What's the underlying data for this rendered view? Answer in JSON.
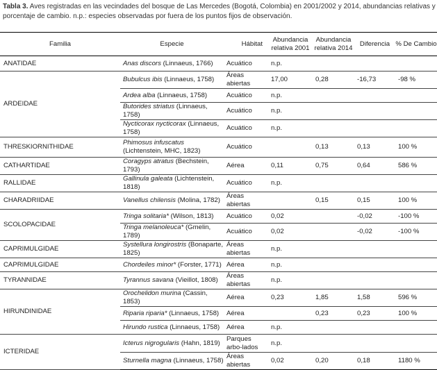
{
  "caption": {
    "label": "Tabla 3.",
    "text": "Aves registradas en las vecindades del bosque de Las Mercedes (Bogotá, Colombia) en 2001/2002 y 2014, abundancias relativas y porcentaje de cambio. n.p.: especies observadas por fuera de los puntos fijos de observación."
  },
  "headers": [
    "Familia",
    "Especie",
    "Hábitat",
    "Abundancia relativa 2001",
    "Abundancia relativa 2014",
    "Diferencia",
    "% De Cambio"
  ],
  "families": [
    {
      "name": "ANATIDAE",
      "species": [
        {
          "name": "Anas discors",
          "author": "(Linnaeus, 1766)",
          "habitat": "Acuático",
          "ab2001": "n.p.",
          "ab2014": "",
          "dif": "",
          "cambio": ""
        }
      ]
    },
    {
      "name": "ARDEIDAE",
      "species": [
        {
          "name": "Bubulcus ibis",
          "author": "(Linnaeus, 1758)",
          "habitat": "Áreas abiertas",
          "ab2001": "17,00",
          "ab2014": "0,28",
          "dif": "-16,73",
          "cambio": "-98 %"
        },
        {
          "name": "Ardea alba",
          "author": "(Linnaeus, 1758)",
          "habitat": "Acuático",
          "ab2001": "n.p.",
          "ab2014": "",
          "dif": "",
          "cambio": ""
        },
        {
          "name": "Butorides striatus",
          "author": "(Linnaeus, 1758)",
          "habitat": "Acuático",
          "ab2001": "n.p.",
          "ab2014": "",
          "dif": "",
          "cambio": ""
        },
        {
          "name": "Nycticorax nycticorax",
          "author": "(Linnaeus, 1758)",
          "habitat": "Acuático",
          "ab2001": "n.p.",
          "ab2014": "",
          "dif": "",
          "cambio": ""
        }
      ]
    },
    {
      "name": "THRESKIORNITHIDAE",
      "species": [
        {
          "name": "Phimosus infuscatus",
          "author": "(Lichtenstein, MHC, 1823)",
          "habitat": "Acuático",
          "ab2001": "",
          "ab2014": "0,13",
          "dif": "0,13",
          "cambio": "100 %"
        }
      ]
    },
    {
      "name": "CATHARTIDAE",
      "species": [
        {
          "name": "Coragyps atratus",
          "author": "(Bechstein, 1793)",
          "habitat": "Aérea",
          "ab2001": "0,11",
          "ab2014": "0,75",
          "dif": "0,64",
          "cambio": "586 %"
        }
      ]
    },
    {
      "name": "RALLIDAE",
      "species": [
        {
          "name": "Gallinula galeata",
          "author": "(Lichtenstein, 1818)",
          "habitat": "Acuático",
          "ab2001": "n.p.",
          "ab2014": "",
          "dif": "",
          "cambio": ""
        }
      ]
    },
    {
      "name": "CHARADRIIDAE",
      "species": [
        {
          "name": "Vanellus chilensis",
          "author": "(Molina, 1782)",
          "habitat": "Áreas abiertas",
          "ab2001": "",
          "ab2014": "0,15",
          "dif": "0,15",
          "cambio": "100 %"
        }
      ]
    },
    {
      "name": "SCOLOPACIDAE",
      "species": [
        {
          "name": "Tringa solitaria*",
          "author": "(Wilson, 1813)",
          "habitat": "Acuático",
          "ab2001": "0,02",
          "ab2014": "",
          "dif": "-0,02",
          "cambio": "-100 %"
        },
        {
          "name": "Tringa melanoleuca*",
          "author": "(Gmelin, 1789)",
          "habitat": "Acuático",
          "ab2001": "0,02",
          "ab2014": "",
          "dif": "-0,02",
          "cambio": "-100 %"
        }
      ]
    },
    {
      "name": "CAPRIMULGIDAE",
      "species": [
        {
          "name": "Systellura longirostris",
          "author": "(Bonaparte, 1825)",
          "habitat": "Áreas abiertas",
          "ab2001": "n.p.",
          "ab2014": "",
          "dif": "",
          "cambio": ""
        }
      ]
    },
    {
      "name": "CAPRIMULGIDAE",
      "species": [
        {
          "name": "Chordeiles minor*",
          "author": "(Forster, 1771)",
          "habitat": "Aérea",
          "ab2001": "n.p.",
          "ab2014": "",
          "dif": "",
          "cambio": ""
        }
      ]
    },
    {
      "name": "TYRANNIDAE",
      "species": [
        {
          "name": "Tyrannus savana",
          "author": "(Vieillot, 1808)",
          "habitat": "Áreas abiertas",
          "ab2001": "n.p.",
          "ab2014": "",
          "dif": "",
          "cambio": ""
        }
      ]
    },
    {
      "name": "HIRUNDINIDAE",
      "species": [
        {
          "name": "Orochelidon murina",
          "author": "(Cassin, 1853)",
          "habitat": "Aérea",
          "ab2001": "0,23",
          "ab2014": "1,85",
          "dif": "1,58",
          "cambio": "596 %"
        },
        {
          "name": "Riparia riparia*",
          "author": "(Linnaeus, 1758)",
          "habitat": "Aérea",
          "ab2001": "",
          "ab2014": "0,23",
          "dif": "0,23",
          "cambio": "100 %"
        },
        {
          "name": "Hirundo rustica",
          "author": "(Linnaeus, 1758)",
          "habitat": "Aérea",
          "ab2001": "n.p.",
          "ab2014": "",
          "dif": "",
          "cambio": ""
        }
      ]
    },
    {
      "name": "ICTERIDAE",
      "species": [
        {
          "name": "Icterus nigrogularis",
          "author": "(Hahn, 1819)",
          "habitat": "Parques arbo-lados",
          "ab2001": "n.p.",
          "ab2014": "",
          "dif": "",
          "cambio": ""
        },
        {
          "name": "Sturnella magna",
          "author": "(Linnaeus, 1758)",
          "habitat": "Áreas abiertas",
          "ab2001": "0,02",
          "ab2014": "0,20",
          "dif": "0,18",
          "cambio": "1180 %"
        }
      ]
    }
  ]
}
